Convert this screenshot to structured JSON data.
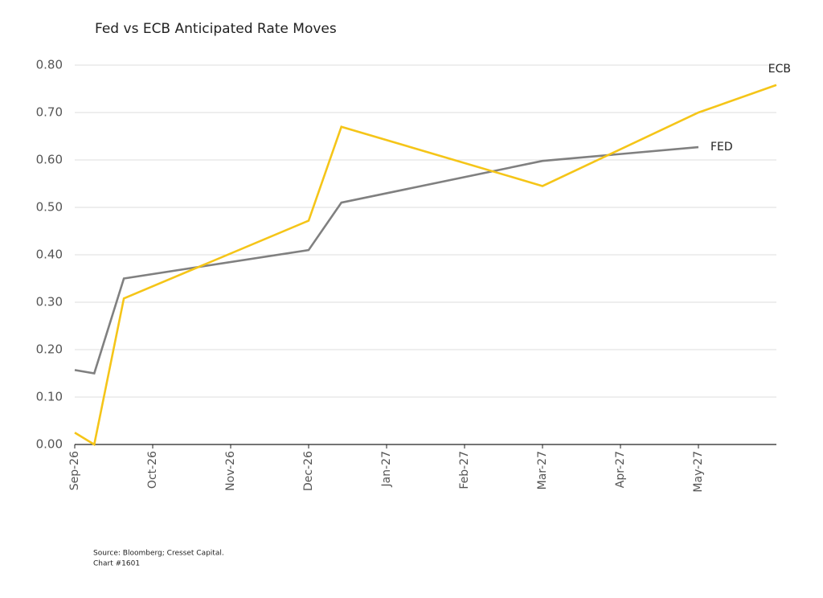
{
  "chart_data": {
    "type": "line",
    "title": "Fed vs ECB Anticipated Rate Moves",
    "x": [
      0,
      0.25,
      0.63,
      3,
      3.42,
      6,
      8,
      9
    ],
    "xlim": [
      0,
      9
    ],
    "xticks": [
      {
        "value": 0,
        "label": "Sep-26"
      },
      {
        "value": 1,
        "label": "Oct-26"
      },
      {
        "value": 2,
        "label": "Nov-26"
      },
      {
        "value": 3,
        "label": "Dec-26"
      },
      {
        "value": 4,
        "label": "Jan-27"
      },
      {
        "value": 5,
        "label": "Feb-27"
      },
      {
        "value": 6,
        "label": "Mar-27"
      },
      {
        "value": 7,
        "label": "Apr-27"
      },
      {
        "value": 8,
        "label": "May-27"
      }
    ],
    "ylim": [
      0,
      0.8
    ],
    "yticks": [
      {
        "value": 0,
        "label": "0.00"
      },
      {
        "value": 0.1,
        "label": "0.10"
      },
      {
        "value": 0.2,
        "label": "0.20"
      },
      {
        "value": 0.3,
        "label": "0.30"
      },
      {
        "value": 0.4,
        "label": "0.40"
      },
      {
        "value": 0.5,
        "label": "0.50"
      },
      {
        "value": 0.6,
        "label": "0.60"
      },
      {
        "value": 0.7,
        "label": "0.70"
      },
      {
        "value": 0.8,
        "label": "0.80"
      }
    ],
    "grid": true,
    "series": [
      {
        "name": "FED",
        "color": "#808080",
        "values": [
          0.157,
          0.15,
          0.35,
          0.41,
          0.51,
          0.598,
          0.627,
          null
        ]
      },
      {
        "name": "ECB",
        "color": "#f5c518",
        "values": [
          0.025,
          0.0,
          0.308,
          0.472,
          0.67,
          0.545,
          0.7,
          0.758
        ]
      }
    ],
    "notes": [
      "Source: Bloomberg; Cresset Capital.",
      "Chart #1601"
    ]
  }
}
